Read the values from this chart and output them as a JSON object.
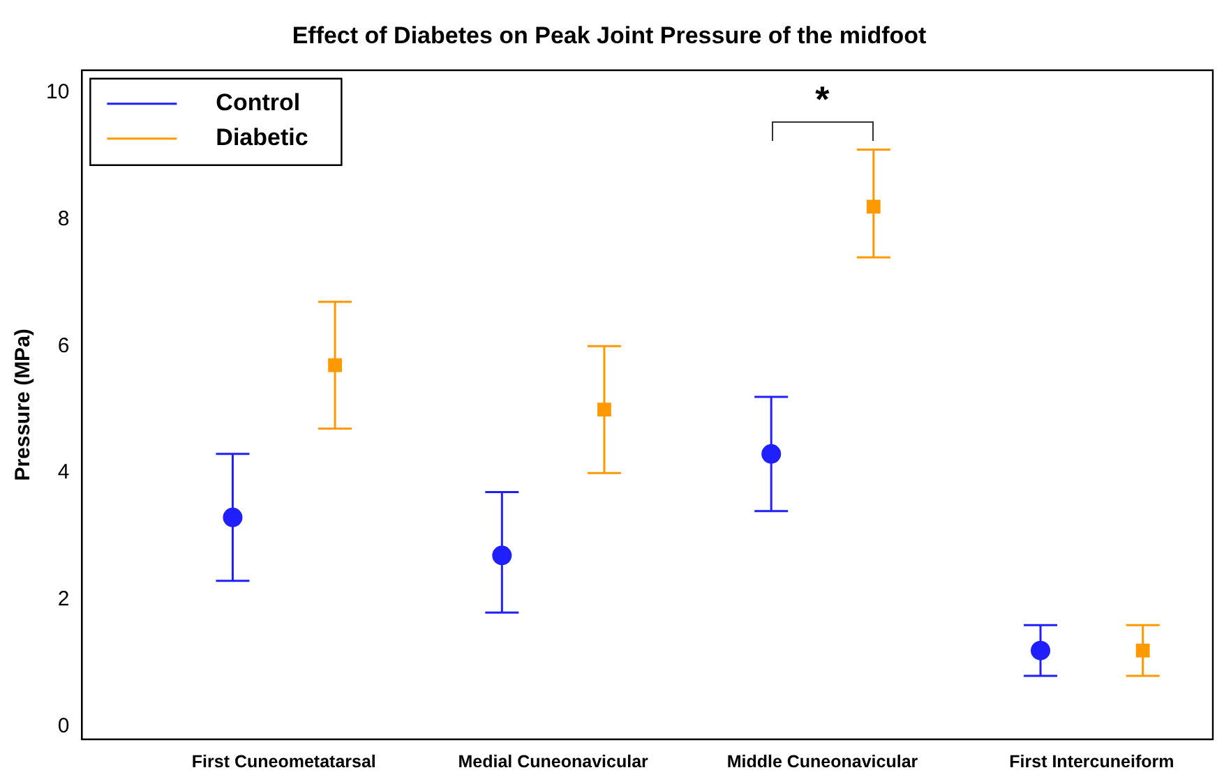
{
  "chart_data": {
    "type": "scatter",
    "title": "Effect of Diabetes on Peak Joint Pressure of the midfoot",
    "ylabel": "Pressure (MPa)",
    "categories": [
      "First Cuneometatarsal",
      "Medial Cuneonavicular",
      "Middle Cuneonavicular",
      "First Intercuneiform"
    ],
    "series": [
      {
        "name": "Control",
        "color": "#2020ff",
        "marker": "circle",
        "values": [
          3.3,
          2.7,
          4.3,
          1.2
        ],
        "errors": [
          [
            2.3,
            4.3
          ],
          [
            1.8,
            3.7
          ],
          [
            3.4,
            5.2
          ],
          [
            0.8,
            1.6
          ]
        ]
      },
      {
        "name": "Diabetic",
        "color": "#ff9900",
        "marker": "square",
        "values": [
          5.7,
          5.0,
          8.2,
          1.2
        ],
        "errors": [
          [
            4.7,
            6.7
          ],
          [
            4.0,
            6.0
          ],
          [
            7.4,
            9.1
          ],
          [
            0.8,
            1.6
          ]
        ]
      }
    ],
    "ylim": [
      -0.2,
      10.35
    ],
    "yticks": [
      0,
      2,
      4,
      6,
      8,
      10
    ],
    "grid": false,
    "legend": "top left",
    "annotations": [
      "*"
    ]
  }
}
